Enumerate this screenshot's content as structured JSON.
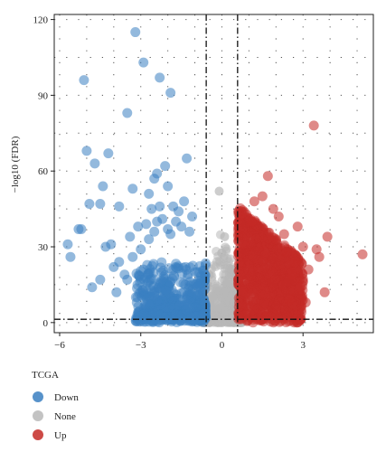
{
  "chart_data": {
    "type": "scatter",
    "title": "",
    "xlabel": "",
    "ylabel": "−log10 (FDR)",
    "xlim": [
      -6.2,
      5.6
    ],
    "ylim": [
      -4,
      122
    ],
    "xticks": [
      -6,
      -3,
      0,
      3
    ],
    "xtick_labels": [
      "−6",
      "−3",
      "0",
      "3"
    ],
    "yticks": [
      0,
      30,
      60,
      90,
      120
    ],
    "ytick_labels": [
      "0",
      "30",
      "60",
      "90",
      "120"
    ],
    "grid": "dotted",
    "threshold_lines": {
      "x": [
        -0.58,
        0.58
      ],
      "y": [
        1.3
      ]
    },
    "legend": {
      "title": "TCGA",
      "position": "bottom-left",
      "items": [
        {
          "label": "Down",
          "color": "#3a7fc1"
        },
        {
          "label": "None",
          "color": "#b8b8b8"
        },
        {
          "label": "Up",
          "color": "#c42a26"
        }
      ]
    },
    "series": [
      {
        "name": "Down",
        "color": "#3a7fc1",
        "points": [
          [
            -3.2,
            115
          ],
          [
            -2.9,
            103
          ],
          [
            -5.1,
            96
          ],
          [
            -2.3,
            97
          ],
          [
            -1.9,
            91
          ],
          [
            -3.5,
            83
          ],
          [
            -5.0,
            68
          ],
          [
            -4.2,
            67
          ],
          [
            -4.7,
            63
          ],
          [
            -4.4,
            54
          ],
          [
            -2.1,
            62
          ],
          [
            -2.4,
            59
          ],
          [
            -2.5,
            57
          ],
          [
            -1.3,
            65
          ],
          [
            -3.3,
            53
          ],
          [
            -4.9,
            47
          ],
          [
            -4.5,
            47
          ],
          [
            -2.0,
            54
          ],
          [
            -2.7,
            51
          ],
          [
            -3.8,
            46
          ],
          [
            -1.4,
            48
          ],
          [
            -2.3,
            46
          ],
          [
            -2.6,
            45
          ],
          [
            -1.8,
            46
          ],
          [
            -1.6,
            44
          ],
          [
            -5.2,
            37
          ],
          [
            -5.7,
            31
          ],
          [
            -5.6,
            26
          ],
          [
            -4.1,
            31
          ],
          [
            -4.3,
            30
          ],
          [
            -4.8,
            14
          ],
          [
            -4.0,
            22
          ],
          [
            -3.6,
            19
          ],
          [
            -3.1,
            38
          ],
          [
            -2.8,
            39
          ],
          [
            -2.2,
            41
          ],
          [
            -1.5,
            38
          ],
          [
            -1.2,
            36
          ],
          [
            -3.3,
            26
          ],
          [
            -3.0,
            29
          ],
          [
            -2.7,
            33
          ],
          [
            -2.5,
            36
          ],
          [
            -2.0,
            37
          ],
          [
            -3.8,
            24
          ],
          [
            -3.5,
            17
          ],
          [
            -4.5,
            17
          ],
          [
            -3.9,
            12
          ],
          [
            -2.9,
            21
          ],
          [
            -5.3,
            37
          ],
          [
            -3.4,
            34
          ],
          [
            -2.4,
            40
          ],
          [
            -1.9,
            35
          ],
          [
            -1.1,
            42
          ],
          [
            -1.7,
            40
          ]
        ]
      },
      {
        "name": "Up",
        "color": "#c42a26",
        "points": [
          [
            3.4,
            78
          ],
          [
            1.7,
            58
          ],
          [
            5.2,
            27
          ],
          [
            3.9,
            34
          ],
          [
            3.5,
            29
          ],
          [
            3.8,
            12
          ],
          [
            3.2,
            21
          ],
          [
            2.9,
            14
          ],
          [
            2.6,
            19
          ],
          [
            2.3,
            35
          ],
          [
            2.1,
            42
          ],
          [
            2.4,
            28
          ],
          [
            1.9,
            45
          ],
          [
            1.5,
            50
          ],
          [
            1.2,
            48
          ],
          [
            2.7,
            24
          ],
          [
            3.0,
            30
          ],
          [
            1.1,
            40
          ],
          [
            2.0,
            33
          ],
          [
            2.8,
            38
          ],
          [
            3.6,
            26
          ],
          [
            2.5,
            9
          ],
          [
            3.1,
            8
          ]
        ]
      }
    ]
  }
}
